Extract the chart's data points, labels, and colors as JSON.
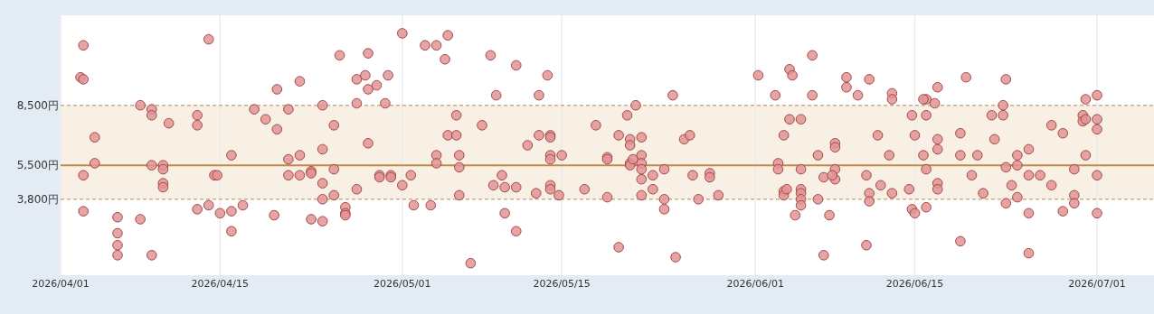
{
  "chart_data": {
    "type": "scatter",
    "marker": "circle",
    "color": "#e39494",
    "grid": "x",
    "xlim": [
      "2026-04-01",
      "2026-07-06"
    ],
    "ylim": [
      0,
      13000
    ],
    "xticks": [
      {
        "value": "2026-04-01",
        "label": "2026/04/01"
      },
      {
        "value": "2026-04-15",
        "label": "2026/04/15"
      },
      {
        "value": "2026-05-01",
        "label": "2026/05/01"
      },
      {
        "value": "2026-05-15",
        "label": "2026/05/15"
      },
      {
        "value": "2026-06-01",
        "label": "2026/06/01"
      },
      {
        "value": "2026-06-15",
        "label": "2026/06/15"
      },
      {
        "value": "2026-07-01",
        "label": "2026/07/01"
      }
    ],
    "yticks": [
      {
        "value": 3800,
        "label": "3,800円"
      },
      {
        "value": 5500,
        "label": "5,500円"
      },
      {
        "value": 8500,
        "label": "8,500円"
      }
    ],
    "bands": [
      {
        "axis": "y",
        "from": 3800,
        "to": 8500,
        "color": "#f8f0e5"
      }
    ],
    "ref_lines": [
      {
        "axis": "y",
        "value": 3800,
        "color": "#c9ad8b",
        "line_style": "dashed"
      },
      {
        "axis": "y",
        "value": 8500,
        "color": "#c9ad8b",
        "line_style": "dashed"
      },
      {
        "axis": "y",
        "value": 5500,
        "color": "#c0894a",
        "line_style": "solid"
      }
    ],
    "x": [
      "2026-04-03",
      "2026-04-02T18:00",
      "2026-04-03",
      "2026-04-04",
      "2026-04-04",
      "2026-04-03",
      "2026-04-03",
      "2026-04-06",
      "2026-04-06",
      "2026-04-06",
      "2026-04-06",
      "2026-04-08",
      "2026-04-08",
      "2026-04-09",
      "2026-04-09",
      "2026-04-09",
      "2026-04-09",
      "2026-04-10T12:00",
      "2026-04-10",
      "2026-04-10",
      "2026-04-10",
      "2026-04-10",
      "2026-04-13",
      "2026-04-13",
      "2026-04-13",
      "2026-04-14",
      "2026-04-14",
      "2026-04-14T12:00",
      "2026-04-14T18:00",
      "2026-04-15",
      "2026-04-16",
      "2026-04-16",
      "2026-04-16",
      "2026-04-17",
      "2026-04-18",
      "2026-04-19",
      "2026-04-20",
      "2026-04-20",
      "2026-04-19T18:00",
      "2026-04-21",
      "2026-04-21",
      "2026-04-21",
      "2026-04-22",
      "2026-04-22",
      "2026-04-22",
      "2026-04-23",
      "2026-04-23",
      "2026-04-23",
      "2026-04-24",
      "2026-04-24",
      "2026-04-24",
      "2026-04-24",
      "2026-04-24",
      "2026-04-25T12:00",
      "2026-04-25",
      "2026-04-25",
      "2026-04-25",
      "2026-04-26",
      "2026-04-26",
      "2026-04-26",
      "2026-04-27",
      "2026-04-27",
      "2026-04-27",
      "2026-04-27T18:00",
      "2026-04-28",
      "2026-04-28",
      "2026-04-28",
      "2026-04-28T18:00",
      "2026-04-29T12:00",
      "2026-04-29T18:00",
      "2026-04-29",
      "2026-04-29",
      "2026-04-30",
      "2026-04-30",
      "2026-05-01",
      "2026-05-01",
      "2026-05-01T18:00",
      "2026-05-02",
      "2026-05-03",
      "2026-05-03T12:00",
      "2026-05-04",
      "2026-05-04T18:00",
      "2026-05-05",
      "2026-05-04",
      "2026-05-04",
      "2026-05-05",
      "2026-05-05T18:00",
      "2026-05-05T18:00",
      "2026-05-06",
      "2026-05-06",
      "2026-05-06",
      "2026-05-07",
      "2026-05-08",
      "2026-05-08T18:00",
      "2026-05-09T06:00",
      "2026-05-09",
      "2026-05-09T18:00",
      "2026-05-10",
      "2026-05-10",
      "2026-05-11",
      "2026-05-11",
      "2026-05-11",
      "2026-05-12",
      "2026-05-12T18:00",
      "2026-05-13",
      "2026-05-13",
      "2026-05-13T18:00",
      "2026-05-14",
      "2026-05-14",
      "2026-05-14",
      "2026-05-14",
      "2026-05-14",
      "2026-05-14",
      "2026-05-14T18:00",
      "2026-05-15",
      "2026-05-17",
      "2026-05-18",
      "2026-05-19",
      "2026-05-20",
      "2026-05-20",
      "2026-05-19",
      "2026-05-19",
      "2026-05-20T18:00",
      "2026-05-21",
      "2026-05-21",
      "2026-05-21",
      "2026-05-21",
      "2026-05-21T06:00",
      "2026-05-21T12:00",
      "2026-05-22",
      "2026-05-22",
      "2026-05-22",
      "2026-05-22",
      "2026-05-22",
      "2026-05-22",
      "2026-05-23",
      "2026-05-23",
      "2026-05-24",
      "2026-05-24",
      "2026-05-24",
      "2026-05-24T18:00",
      "2026-05-25",
      "2026-05-25T18:00",
      "2026-05-26T06:00",
      "2026-05-26T12:00",
      "2026-05-27",
      "2026-05-28",
      "2026-05-28",
      "2026-05-28T18:00",
      "2026-06-01T06:00",
      "2026-06-02T18:00",
      "2026-06-03",
      "2026-06-03",
      "2026-06-03T12:00",
      "2026-06-03T12:00",
      "2026-06-03T12:00",
      "2026-06-03T18:00",
      "2026-06-04",
      "2026-06-04T06:00",
      "2026-06-04",
      "2026-06-04T12:00",
      "2026-06-05",
      "2026-06-05",
      "2026-06-05",
      "2026-06-05",
      "2026-06-05",
      "2026-06-05",
      "2026-06-06",
      "2026-06-06",
      "2026-06-06T12:00",
      "2026-06-06T12:00",
      "2026-06-07",
      "2026-06-07",
      "2026-06-07T12:00",
      "2026-06-08",
      "2026-06-08",
      "2026-06-08",
      "2026-06-08",
      "2026-06-07T18:00",
      "2026-06-09",
      "2026-06-09",
      "2026-06-10",
      "2026-06-11",
      "2026-06-10T18:00",
      "2026-06-11",
      "2026-06-11",
      "2026-06-10T18:00",
      "2026-06-11T18:00",
      "2026-06-12",
      "2026-06-12T18:00",
      "2026-06-13",
      "2026-06-13",
      "2026-06-13",
      "2026-06-14T12:00",
      "2026-06-14T18:00",
      "2026-06-15",
      "2026-06-14T18:00",
      "2026-06-15",
      "2026-06-15T18:00",
      "2026-06-16",
      "2026-06-15T18:00",
      "2026-06-16",
      "2026-06-16",
      "2026-06-16",
      "2026-06-16T18:00",
      "2026-06-17",
      "2026-06-17",
      "2026-06-17",
      "2026-06-17",
      "2026-06-17",
      "2026-06-19",
      "2026-06-19",
      "2026-06-19",
      "2026-06-19T12:00",
      "2026-06-20",
      "2026-06-20T12:00",
      "2026-06-21",
      "2026-06-21T18:00",
      "2026-06-22",
      "2026-06-22T18:00",
      "2026-06-22T18:00",
      "2026-06-23",
      "2026-06-23",
      "2026-06-23",
      "2026-06-23T12:00",
      "2026-06-24",
      "2026-06-24",
      "2026-06-24",
      "2026-06-25",
      "2026-06-25",
      "2026-06-25",
      "2026-06-25",
      "2026-06-26",
      "2026-06-27",
      "2026-06-27",
      "2026-06-28",
      "2026-06-28",
      "2026-06-29",
      "2026-06-29",
      "2026-06-29",
      "2026-06-29T18:00",
      "2026-06-29T18:00",
      "2026-06-30",
      "2026-06-30",
      "2026-06-30",
      "2026-07-01",
      "2026-07-01",
      "2026-07-01",
      "2026-07-01",
      "2026-07-01"
    ],
    "values": [
      11500,
      9900,
      9800,
      6900,
      5600,
      5000,
      3200,
      2900,
      2100,
      1500,
      1000,
      8500,
      2800,
      8300,
      8000,
      5500,
      1000,
      7600,
      5500,
      5300,
      4600,
      4400,
      8000,
      7500,
      3300,
      11800,
      3500,
      5000,
      5000,
      3100,
      6000,
      3200,
      2200,
      3500,
      8300,
      7800,
      9300,
      7300,
      3000,
      8300,
      5800,
      5000,
      9700,
      6000,
      5000,
      2800,
      5200,
      5100,
      8500,
      6300,
      4600,
      3800,
      2700,
      11000,
      7500,
      5300,
      4000,
      3400,
      3100,
      3000,
      9800,
      8600,
      4300,
      10000,
      9300,
      11100,
      6600,
      9500,
      8600,
      10000,
      5000,
      4900,
      5000,
      4900,
      12100,
      4500,
      5000,
      3500,
      11500,
      3500,
      11500,
      10800,
      12000,
      6000,
      5600,
      7000,
      7000,
      8000,
      6000,
      5400,
      4000,
      600,
      7500,
      11000,
      9000,
      4500,
      5000,
      4400,
      3100,
      2200,
      10500,
      4400,
      6500,
      4100,
      9000,
      7000,
      10000,
      7000,
      6900,
      6000,
      5800,
      4500,
      4300,
      4000,
      6000,
      4300,
      7500,
      3900,
      7000,
      1400,
      5900,
      5800,
      8000,
      6800,
      6500,
      5600,
      5500,
      5800,
      8500,
      6900,
      6000,
      5600,
      5300,
      4800,
      4000,
      5000,
      4300,
      5300,
      3800,
      3300,
      9000,
      900,
      6800,
      7000,
      5000,
      3800,
      5100,
      4900,
      4000,
      10000,
      9000,
      5600,
      5300,
      7000,
      4200,
      4000,
      4300,
      10300,
      10000,
      7800,
      3000,
      7800,
      5300,
      4300,
      4100,
      3800,
      3500,
      11000,
      9000,
      6000,
      3800,
      4900,
      1000,
      3000,
      6600,
      6400,
      5300,
      4800,
      5000,
      9900,
      9400,
      9000,
      9800,
      5000,
      4100,
      3700,
      1500,
      7000,
      4500,
      6000,
      9100,
      8800,
      4100,
      4300,
      8000,
      7000,
      3300,
      3100,
      6000,
      8800,
      8800,
      8000,
      5300,
      3400,
      8600,
      9400,
      6800,
      6300,
      4600,
      4300,
      7100,
      6000,
      1700,
      9900,
      5000,
      6000,
      4100,
      8000,
      6800,
      8500,
      8000,
      9800,
      5400,
      3600,
      4500,
      6000,
      5500,
      3900,
      6300,
      5000,
      3100,
      1100,
      5000,
      7500,
      4500,
      7100,
      3200,
      5300,
      4000,
      3600,
      8000,
      7700,
      7800,
      8800,
      6000,
      9000,
      7800,
      7300,
      5000,
      3100
    ]
  }
}
